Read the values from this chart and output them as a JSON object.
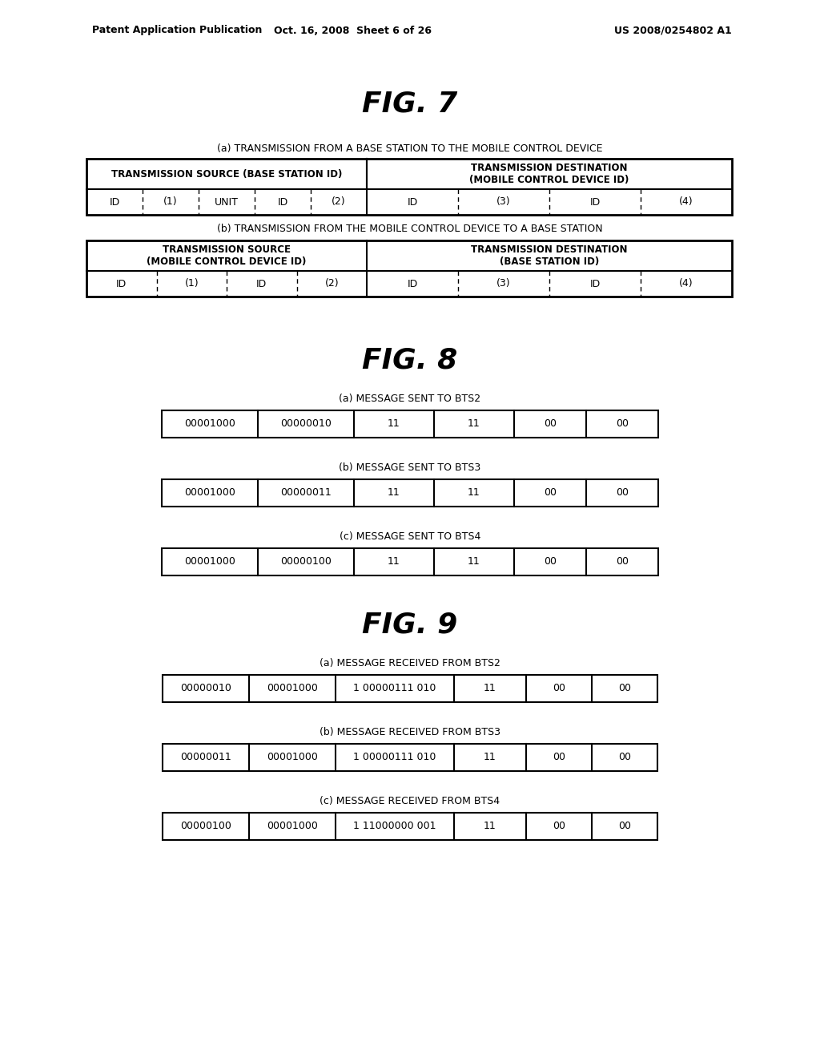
{
  "header_text_left": "Patent Application Publication",
  "header_text_mid": "Oct. 16, 2008  Sheet 6 of 26",
  "header_text_right": "US 2008/0254802 A1",
  "fig7_title": "FIG. 7",
  "fig8_title": "FIG. 8",
  "fig9_title": "FIG. 9",
  "fig7a_label": "(a) TRANSMISSION FROM A BASE STATION TO THE MOBILE CONTROL DEVICE",
  "fig7b_label": "(b) TRANSMISSION FROM THE MOBILE CONTROL DEVICE TO A BASE STATION",
  "fig7a_src_header": "TRANSMISSION SOURCE (BASE STATION ID)",
  "fig7a_dst_header": "TRANSMISSION DESTINATION\n(MOBILE CONTROL DEVICE ID)",
  "fig7b_src_header": "TRANSMISSION SOURCE\n(MOBILE CONTROL DEVICE ID)",
  "fig7b_dst_header": "TRANSMISSION DESTINATION\n(BASE STATION ID)",
  "fig7a_src_labels": [
    "ID",
    "(1)",
    "UNIT",
    "ID",
    "(2)"
  ],
  "fig7a_dst_labels": [
    "ID",
    "(3)",
    "ID",
    "(4)"
  ],
  "fig7b_src_labels": [
    "ID",
    "(1)",
    "ID",
    "(2)"
  ],
  "fig7b_dst_labels": [
    "ID",
    "(3)",
    "ID",
    "(4)"
  ],
  "fig8a_label": "(a) MESSAGE SENT TO BTS2",
  "fig8b_label": "(b) MESSAGE SENT TO BTS3",
  "fig8c_label": "(c) MESSAGE SENT TO BTS4",
  "fig8a_row": [
    "00001000",
    "00000010",
    "11",
    "11",
    "00",
    "00"
  ],
  "fig8b_row": [
    "00001000",
    "00000011",
    "11",
    "11",
    "00",
    "00"
  ],
  "fig8c_row": [
    "00001000",
    "00000100",
    "11",
    "11",
    "00",
    "00"
  ],
  "fig9a_label": "(a) MESSAGE RECEIVED FROM BTS2",
  "fig9b_label": "(b) MESSAGE RECEIVED FROM BTS3",
  "fig9c_label": "(c) MESSAGE RECEIVED FROM BTS4",
  "fig9a_row": [
    "00000010",
    "00001000",
    "1 00000111 010",
    "11",
    "00",
    "00"
  ],
  "fig9b_row": [
    "00000011",
    "00001000",
    "1 00000111 010",
    "11",
    "00",
    "00"
  ],
  "fig9c_row": [
    "00000100",
    "00001000",
    "1 11000000 001",
    "11",
    "00",
    "00"
  ],
  "bg_color": "#ffffff",
  "text_color": "#000000",
  "border_color": "#000000"
}
